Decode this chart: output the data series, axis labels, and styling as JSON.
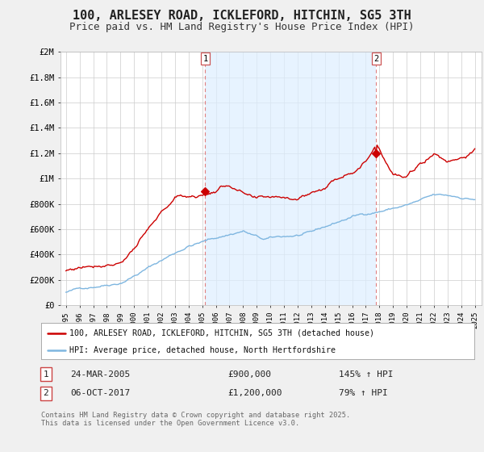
{
  "title": "100, ARLESEY ROAD, ICKLEFORD, HITCHIN, SG5 3TH",
  "subtitle": "Price paid vs. HM Land Registry's House Price Index (HPI)",
  "ylabel_ticks": [
    "£0",
    "£200K",
    "£400K",
    "£600K",
    "£800K",
    "£1M",
    "£1.2M",
    "£1.4M",
    "£1.6M",
    "£1.8M",
    "£2M"
  ],
  "ytick_values": [
    0,
    200000,
    400000,
    600000,
    800000,
    1000000,
    1200000,
    1400000,
    1600000,
    1800000,
    2000000
  ],
  "ylim": [
    0,
    2000000
  ],
  "hpi_color": "#7eb6e0",
  "property_color": "#cc0000",
  "point1_year": 2005.22,
  "point1_value": 900000,
  "point2_year": 2017.76,
  "point2_value": 1200000,
  "shade_color": "#ddeeff",
  "vline_color": "#e08080",
  "legend1": "100, ARLESEY ROAD, ICKLEFORD, HITCHIN, SG5 3TH (detached house)",
  "legend2": "HPI: Average price, detached house, North Hertfordshire",
  "annotation1_date": "24-MAR-2005",
  "annotation1_price": "£900,000",
  "annotation1_hpi": "145% ↑ HPI",
  "annotation2_date": "06-OCT-2017",
  "annotation2_price": "£1,200,000",
  "annotation2_hpi": "79% ↑ HPI",
  "footer": "Contains HM Land Registry data © Crown copyright and database right 2025.\nThis data is licensed under the Open Government Licence v3.0.",
  "background_color": "#f0f0f0",
  "plot_background": "#ffffff",
  "grid_color": "#cccccc",
  "title_fontsize": 11,
  "subtitle_fontsize": 9
}
